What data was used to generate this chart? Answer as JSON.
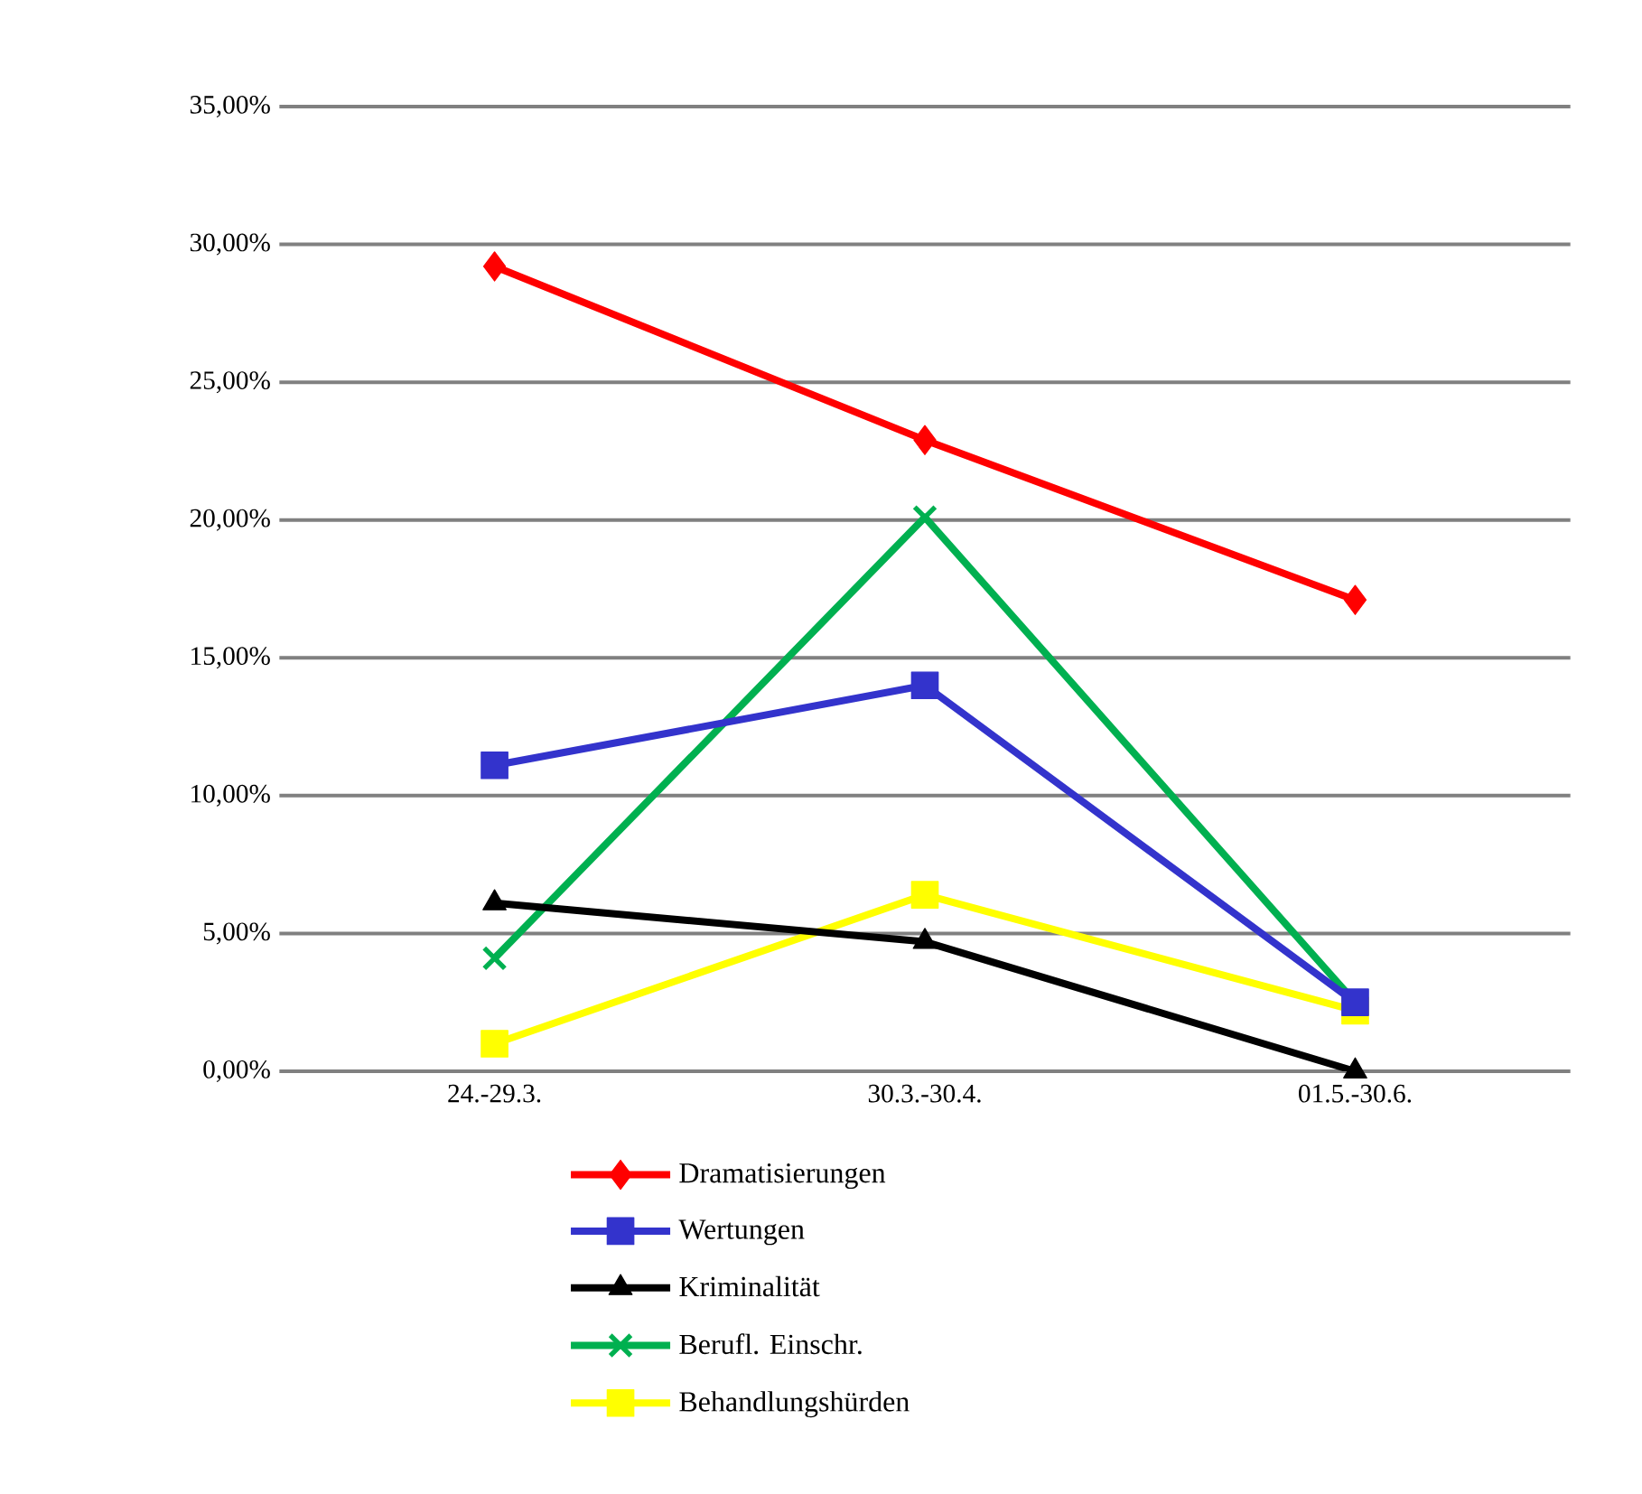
{
  "chart_data": {
    "type": "line",
    "categories": [
      "24.-29.3.",
      "30.3.-30.4.",
      "01.5.-30.6."
    ],
    "series": [
      {
        "name": "Dramatisierungen",
        "color": "#ff0000",
        "marker": "diamond",
        "values": [
          29.2,
          22.9,
          17.1
        ]
      },
      {
        "name": "Wertungen",
        "color": "#3333cc",
        "marker": "square",
        "values": [
          11.1,
          14.0,
          2.5
        ]
      },
      {
        "name": "Kriminalität",
        "color": "#000000",
        "marker": "triangle",
        "values": [
          6.1,
          4.7,
          0
        ]
      },
      {
        "name": "Berufl. Einschr.",
        "color": "#00b050",
        "marker": "cross",
        "values": [
          4.1,
          20.1,
          2.5
        ]
      },
      {
        "name": "Behandlungshürden",
        "color": "#ffff00",
        "marker": "square",
        "values": [
          1.0,
          6.4,
          2.2
        ]
      }
    ],
    "ylim": [
      0,
      35
    ],
    "yticks": [
      {
        "value": 0,
        "label": "0,00%"
      },
      {
        "value": 5,
        "label": "5,00%"
      },
      {
        "value": 10,
        "label": "10,00%"
      },
      {
        "value": 15,
        "label": "15,00%"
      },
      {
        "value": 20,
        "label": "20,00%"
      },
      {
        "value": 25,
        "label": "25,00%"
      },
      {
        "value": 30,
        "label": "30,00%"
      },
      {
        "value": 35,
        "label": "35,00%"
      }
    ],
    "grid": "y",
    "legend": "bottom",
    "line_style": "solid"
  }
}
